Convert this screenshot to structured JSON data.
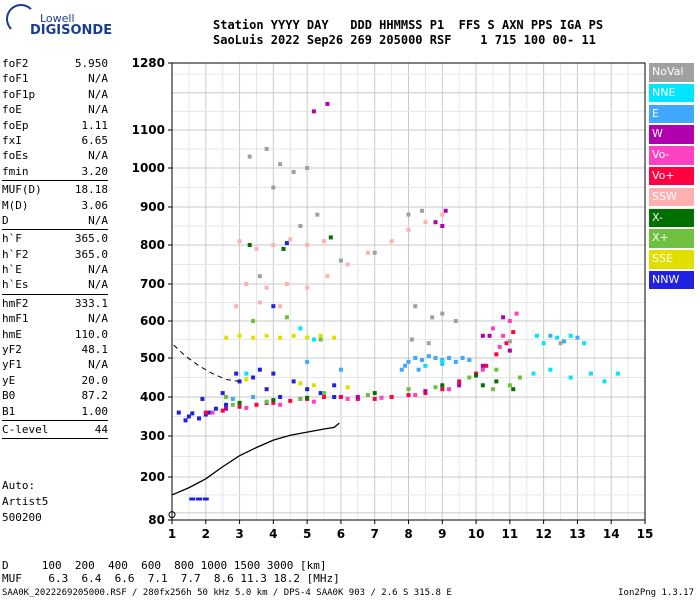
{
  "logo": {
    "top": "Lowell",
    "bottom": "DIGISONDE"
  },
  "header": {
    "line1": "Station YYYY DAY   DDD HHMMSS P1  FFS S AXN PPS IGA PS",
    "line2": "SaoLuis 2022 Sep26 269 205000 RSF    1 715 100 00- 11"
  },
  "params_top": [
    {
      "k": "foF2",
      "v": "5.950"
    },
    {
      "k": "foF1",
      "v": "N/A"
    },
    {
      "k": "foF1p",
      "v": "N/A"
    },
    {
      "k": "foE",
      "v": "N/A"
    },
    {
      "k": "foEp",
      "v": "1.11"
    },
    {
      "k": "fxI",
      "v": "6.65"
    },
    {
      "k": "foEs",
      "v": "N/A"
    },
    {
      "k": "fmin",
      "v": "3.20"
    }
  ],
  "params_muf": [
    {
      "k": "MUF(D)",
      "v": "18.18"
    },
    {
      "k": "M(D)",
      "v": "3.06"
    },
    {
      "k": "D",
      "v": "N/A"
    }
  ],
  "params_h": [
    {
      "k": "h`F",
      "v": "365.0"
    },
    {
      "k": "h`F2",
      "v": "365.0"
    },
    {
      "k": "h`E",
      "v": "N/A"
    },
    {
      "k": "h`Es",
      "v": "N/A"
    }
  ],
  "params_hm": [
    {
      "k": "hmF2",
      "v": "333.1"
    },
    {
      "k": "hmF1",
      "v": "N/A"
    },
    {
      "k": "hmE",
      "v": "110.0"
    },
    {
      "k": "yF2",
      "v": "48.1"
    },
    {
      "k": "yF1",
      "v": "N/A"
    },
    {
      "k": "yE",
      "v": "20.0"
    },
    {
      "k": "B0",
      "v": "87.2"
    },
    {
      "k": "B1",
      "v": "1.00"
    }
  ],
  "params_clevel": [
    {
      "k": "C-level",
      "v": "44"
    }
  ],
  "auto": {
    "line1": "Auto:",
    "line2": "Artist5",
    "line3": "500200"
  },
  "legend": [
    {
      "label": "NoVal",
      "color": "#a0a0a0"
    },
    {
      "label": "NNE",
      "color": "#00e5ff"
    },
    {
      "label": "E",
      "color": "#40a8ff"
    },
    {
      "label": "W",
      "color": "#b000b0"
    },
    {
      "label": "Vo-",
      "color": "#ff40c0"
    },
    {
      "label": "Vo+",
      "color": "#ff0040"
    },
    {
      "label": "SSW",
      "color": "#ffb0b0"
    },
    {
      "label": "X-",
      "color": "#007000"
    },
    {
      "label": "X+",
      "color": "#70c040"
    },
    {
      "label": "SSE",
      "color": "#e0e000"
    },
    {
      "label": "NNW",
      "color": "#2020e0"
    }
  ],
  "footer": {
    "d_row": "D     100  200  400  600  800 1000 1500 3000 [km]",
    "muf_row": "MUF    6.3  6.4  6.6  7.1  7.7  8.6 11.3 18.2 [MHz]",
    "file_info": "SAA0K_2022269205000.RSF / 280fx256h 50 kHz 5.0 km / DPS-4 SAA0K 903 / 2.6 S 315.8 E",
    "version": "Ion2Png 1.3.17"
  },
  "chart_data": {
    "type": "scatter",
    "xlim": [
      1,
      15
    ],
    "ylim": [
      80,
      1280
    ],
    "x_ticks": [
      1,
      2,
      3,
      4,
      5,
      6,
      7,
      8,
      9,
      10,
      11,
      12,
      13,
      14,
      15
    ],
    "y_ticks": [
      80,
      200,
      300,
      400,
      500,
      600,
      700,
      800,
      900,
      1000,
      1100,
      1280
    ],
    "grid": true,
    "legend_position": "right",
    "series": [
      {
        "name": "NNW",
        "color": "#2020e0",
        "points": [
          [
            1.2,
            360
          ],
          [
            1.5,
            350
          ],
          [
            1.8,
            345
          ],
          [
            2.0,
            355
          ],
          [
            2.3,
            370
          ],
          [
            2.6,
            380
          ],
          [
            3.0,
            440
          ],
          [
            3.4,
            450
          ],
          [
            3.8,
            420
          ],
          [
            4.2,
            400
          ],
          [
            4.6,
            440
          ],
          [
            5.0,
            420
          ],
          [
            5.4,
            410
          ],
          [
            5.8,
            400
          ],
          [
            1.4,
            340
          ],
          [
            2.1,
            360
          ],
          [
            2.9,
            460
          ],
          [
            4.0,
            460
          ],
          [
            4.4,
            805
          ],
          [
            4.0,
            640
          ],
          [
            5.8,
            430
          ],
          [
            3.6,
            470
          ],
          [
            2.5,
            410
          ],
          [
            1.9,
            395
          ],
          [
            1.6,
            358
          ]
        ]
      },
      {
        "name": "Vo+",
        "color": "#ff0040",
        "points": [
          [
            2.0,
            360
          ],
          [
            2.5,
            365
          ],
          [
            3.0,
            375
          ],
          [
            3.5,
            380
          ],
          [
            4.0,
            385
          ],
          [
            4.5,
            390
          ],
          [
            5.0,
            395
          ],
          [
            5.5,
            400
          ],
          [
            6.0,
            400
          ],
          [
            6.5,
            395
          ],
          [
            7.0,
            395
          ],
          [
            7.5,
            400
          ],
          [
            8.0,
            405
          ],
          [
            8.5,
            410
          ],
          [
            9.0,
            420
          ],
          [
            9.5,
            440
          ],
          [
            10.0,
            460
          ],
          [
            10.3,
            480
          ],
          [
            10.6,
            510
          ],
          [
            10.9,
            540
          ],
          [
            11.1,
            570
          ]
        ]
      },
      {
        "name": "Vo-",
        "color": "#ff40c0",
        "points": [
          [
            2.2,
            360
          ],
          [
            3.2,
            372
          ],
          [
            4.2,
            380
          ],
          [
            5.2,
            388
          ],
          [
            6.2,
            395
          ],
          [
            7.2,
            398
          ],
          [
            8.2,
            405
          ],
          [
            9.2,
            420
          ],
          [
            10.2,
            470
          ],
          [
            10.8,
            560
          ],
          [
            11.0,
            600
          ],
          [
            10.5,
            580
          ],
          [
            11.2,
            620
          ],
          [
            10.7,
            530
          ]
        ]
      },
      {
        "name": "W",
        "color": "#b000b0",
        "points": [
          [
            2.6,
            370
          ],
          [
            3.8,
            385
          ],
          [
            4.8,
            395
          ],
          [
            6.5,
            400
          ],
          [
            8.5,
            415
          ],
          [
            9.5,
            430
          ],
          [
            10.2,
            480
          ],
          [
            11.0,
            520
          ],
          [
            10.8,
            610
          ],
          [
            10.4,
            560
          ],
          [
            5.2,
            1150
          ],
          [
            5.6,
            1170
          ],
          [
            8.8,
            860
          ],
          [
            9.1,
            890
          ],
          [
            9.0,
            850
          ],
          [
            10.2,
            560
          ]
        ]
      },
      {
        "name": "E",
        "color": "#40a8ff",
        "points": [
          [
            7.8,
            470
          ],
          [
            8.0,
            490
          ],
          [
            8.2,
            500
          ],
          [
            8.4,
            495
          ],
          [
            8.6,
            505
          ],
          [
            8.8,
            500
          ],
          [
            9.0,
            495
          ],
          [
            9.2,
            500
          ],
          [
            9.4,
            490
          ],
          [
            9.6,
            500
          ],
          [
            9.8,
            495
          ],
          [
            7.9,
            480
          ],
          [
            8.3,
            470
          ],
          [
            9.0,
            485
          ],
          [
            5.0,
            490
          ],
          [
            6.0,
            470
          ],
          [
            3.4,
            400
          ],
          [
            2.8,
            395
          ],
          [
            12.2,
            560
          ],
          [
            12.6,
            545
          ],
          [
            13.0,
            555
          ]
        ]
      },
      {
        "name": "NNE",
        "color": "#00e5ff",
        "points": [
          [
            11.8,
            560
          ],
          [
            12.0,
            540
          ],
          [
            12.4,
            555
          ],
          [
            12.8,
            560
          ],
          [
            13.2,
            540
          ],
          [
            11.7,
            460
          ],
          [
            12.2,
            470
          ],
          [
            12.8,
            450
          ],
          [
            13.4,
            460
          ],
          [
            13.8,
            440
          ],
          [
            14.2,
            460
          ],
          [
            9.0,
            490
          ],
          [
            8.5,
            480
          ],
          [
            3.2,
            460
          ],
          [
            4.8,
            580
          ],
          [
            5.2,
            550
          ]
        ]
      },
      {
        "name": "X+",
        "color": "#70c040",
        "points": [
          [
            2.8,
            380
          ],
          [
            3.8,
            388
          ],
          [
            4.8,
            395
          ],
          [
            6.8,
            405
          ],
          [
            8.8,
            425
          ],
          [
            9.8,
            450
          ],
          [
            10.6,
            470
          ],
          [
            11.0,
            430
          ],
          [
            11.3,
            450
          ],
          [
            10.5,
            420
          ],
          [
            2.6,
            400
          ],
          [
            5.5,
            410
          ],
          [
            8.0,
            420
          ],
          [
            3.4,
            600
          ],
          [
            4.4,
            610
          ],
          [
            5.4,
            550
          ]
        ]
      },
      {
        "name": "X-",
        "color": "#007000",
        "points": [
          [
            3.0,
            385
          ],
          [
            4.0,
            392
          ],
          [
            5.0,
            398
          ],
          [
            7.0,
            410
          ],
          [
            9.0,
            430
          ],
          [
            10.0,
            455
          ],
          [
            10.6,
            440
          ],
          [
            11.1,
            420
          ],
          [
            10.2,
            430
          ],
          [
            3.3,
            800
          ],
          [
            4.3,
            790
          ],
          [
            5.7,
            820
          ]
        ]
      },
      {
        "name": "SSE",
        "color": "#e0e000",
        "points": [
          [
            2.6,
            555
          ],
          [
            3.0,
            560
          ],
          [
            3.4,
            555
          ],
          [
            3.8,
            560
          ],
          [
            4.2,
            555
          ],
          [
            4.6,
            560
          ],
          [
            5.0,
            555
          ],
          [
            5.4,
            560
          ],
          [
            5.8,
            555
          ],
          [
            4.8,
            435
          ],
          [
            5.2,
            430
          ],
          [
            3.2,
            445
          ],
          [
            6.2,
            425
          ]
        ]
      },
      {
        "name": "SSW",
        "color": "#ffb0b0",
        "points": [
          [
            3.0,
            810
          ],
          [
            3.5,
            790
          ],
          [
            4.0,
            800
          ],
          [
            4.5,
            815
          ],
          [
            5.0,
            800
          ],
          [
            5.5,
            810
          ],
          [
            3.2,
            700
          ],
          [
            3.8,
            690
          ],
          [
            4.4,
            700
          ],
          [
            5.0,
            690
          ],
          [
            5.6,
            720
          ],
          [
            6.2,
            750
          ],
          [
            6.8,
            780
          ],
          [
            7.5,
            810
          ],
          [
            8.0,
            840
          ],
          [
            8.5,
            860
          ],
          [
            9.0,
            880
          ],
          [
            2.9,
            640
          ],
          [
            3.6,
            650
          ],
          [
            4.2,
            640
          ]
        ]
      },
      {
        "name": "NoVal",
        "color": "#a0a0a0",
        "points": [
          [
            3.3,
            1030
          ],
          [
            3.8,
            1050
          ],
          [
            4.2,
            1010
          ],
          [
            4.6,
            990
          ],
          [
            5.0,
            1000
          ],
          [
            4.0,
            950
          ],
          [
            3.6,
            720
          ],
          [
            4.8,
            850
          ],
          [
            5.3,
            880
          ],
          [
            6.0,
            760
          ],
          [
            7.0,
            780
          ],
          [
            8.0,
            880
          ],
          [
            8.4,
            890
          ],
          [
            8.2,
            640
          ],
          [
            8.7,
            610
          ],
          [
            9.0,
            620
          ],
          [
            9.4,
            600
          ],
          [
            11.0,
            545
          ],
          [
            12.5,
            540
          ],
          [
            8.1,
            550
          ],
          [
            8.6,
            540
          ]
        ]
      }
    ],
    "profile": {
      "color": "#000000",
      "points": [
        [
          1.0,
          150
        ],
        [
          1.5,
          170
        ],
        [
          2.0,
          195
        ],
        [
          2.5,
          225
        ],
        [
          3.0,
          252
        ],
        [
          3.5,
          272
        ],
        [
          4.0,
          290
        ],
        [
          4.5,
          302
        ],
        [
          5.0,
          310
        ],
        [
          5.5,
          318
        ],
        [
          5.8,
          322
        ],
        [
          5.95,
          333
        ]
      ],
      "dashed_points": [
        [
          1.05,
          535
        ],
        [
          1.4,
          505
        ],
        [
          1.8,
          480
        ],
        [
          2.2,
          460
        ],
        [
          2.6,
          445
        ],
        [
          3.0,
          440
        ]
      ]
    },
    "es_points": [
      [
        1.6,
        140
      ],
      [
        1.8,
        140
      ],
      [
        2.0,
        140
      ]
    ]
  }
}
